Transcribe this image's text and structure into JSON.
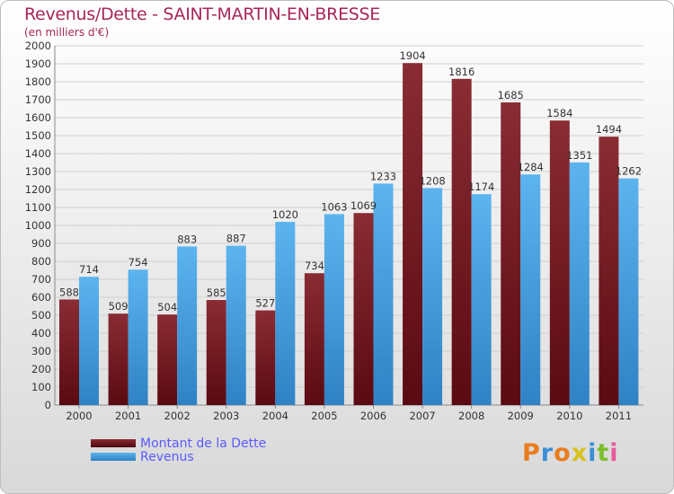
{
  "title": "Revenus/Dette - SAINT-MARTIN-EN-BRESSE",
  "subtitle": "(en milliers d'€)",
  "colors": {
    "dette": "#7a1e26",
    "revenus": "#4ea6e6",
    "title": "#a8265b",
    "legend_text": "#5a5aff"
  },
  "logo": {
    "text": "Proxiti"
  },
  "chart_data": {
    "type": "bar",
    "title": "Revenus/Dette - SAINT-MARTIN-EN-BRESSE",
    "ylabel": "(en milliers d'€)",
    "xlabel": "",
    "ylim": [
      0,
      2000
    ],
    "ytick_step": 100,
    "grid": true,
    "legend": "bottom-left",
    "categories": [
      "2000",
      "2001",
      "2002",
      "2003",
      "2004",
      "2005",
      "2006",
      "2007",
      "2008",
      "2009",
      "2010",
      "2011"
    ],
    "series": [
      {
        "name": "Montant de la Dette",
        "values": [
          588,
          509,
          504,
          585,
          527,
          734,
          1069,
          1904,
          1816,
          1685,
          1584,
          1494
        ]
      },
      {
        "name": "Revenus",
        "values": [
          714,
          754,
          883,
          887,
          1020,
          1063,
          1233,
          1208,
          1174,
          1284,
          1351,
          1262
        ]
      }
    ]
  }
}
